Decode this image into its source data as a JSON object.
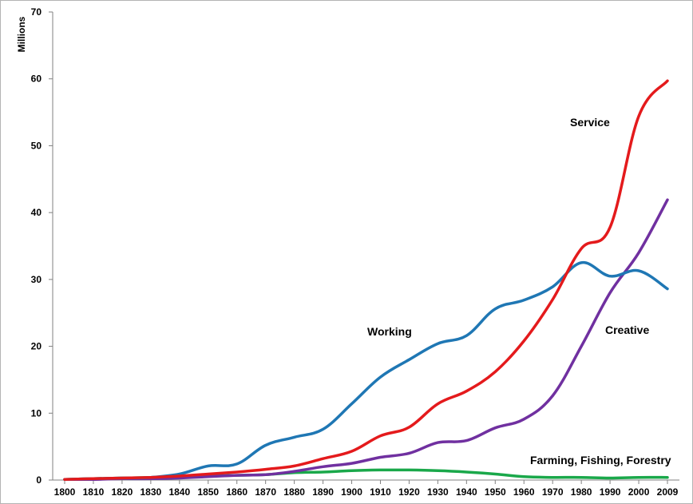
{
  "chart_data": {
    "type": "line",
    "title": "",
    "xlabel": "",
    "ylabel": "Millions",
    "x": [
      "1800",
      "1810",
      "1820",
      "1830",
      "1840",
      "1850",
      "1860",
      "1870",
      "1880",
      "1890",
      "1900",
      "1910",
      "1920",
      "1930",
      "1940",
      "1950",
      "1960",
      "1970",
      "1980",
      "1990",
      "2000",
      "2009"
    ],
    "ylim": [
      0,
      70
    ],
    "yticks": [
      0,
      10,
      20,
      30,
      40,
      50,
      60,
      70
    ],
    "grid": false,
    "legend": "none",
    "series": [
      {
        "name": "Working",
        "color": "#1f77b4",
        "values": [
          0.1,
          0.2,
          0.3,
          0.4,
          0.9,
          2.1,
          2.4,
          5.2,
          6.4,
          7.6,
          11.4,
          15.4,
          18.0,
          20.4,
          21.6,
          25.6,
          26.9,
          28.9,
          32.5,
          30.5,
          31.3,
          28.6
        ]
      },
      {
        "name": "Service",
        "color": "#e41a1c",
        "values": [
          0.1,
          0.2,
          0.3,
          0.4,
          0.6,
          0.9,
          1.2,
          1.6,
          2.1,
          3.2,
          4.3,
          6.6,
          7.9,
          11.4,
          13.3,
          16.2,
          20.8,
          27.0,
          34.6,
          37.8,
          54.4,
          59.7
        ]
      },
      {
        "name": "Creative",
        "color": "#7030a0",
        "values": [
          0.1,
          0.1,
          0.2,
          0.2,
          0.3,
          0.5,
          0.7,
          0.8,
          1.3,
          2.0,
          2.5,
          3.4,
          4.0,
          5.6,
          5.9,
          7.8,
          9.1,
          12.6,
          20.0,
          28.0,
          34.0,
          41.9
        ]
      },
      {
        "name": "Farming, Fishing, Forestry",
        "color": "#1aa84a",
        "values": [
          0.1,
          0.2,
          0.3,
          0.4,
          0.5,
          0.6,
          0.7,
          0.8,
          1.1,
          1.2,
          1.4,
          1.5,
          1.5,
          1.4,
          1.2,
          0.9,
          0.5,
          0.4,
          0.4,
          0.3,
          0.4,
          0.4
        ]
      }
    ],
    "annotations": [
      "Working",
      "Service",
      "Creative",
      "Farming, Fishing, Forestry"
    ]
  }
}
